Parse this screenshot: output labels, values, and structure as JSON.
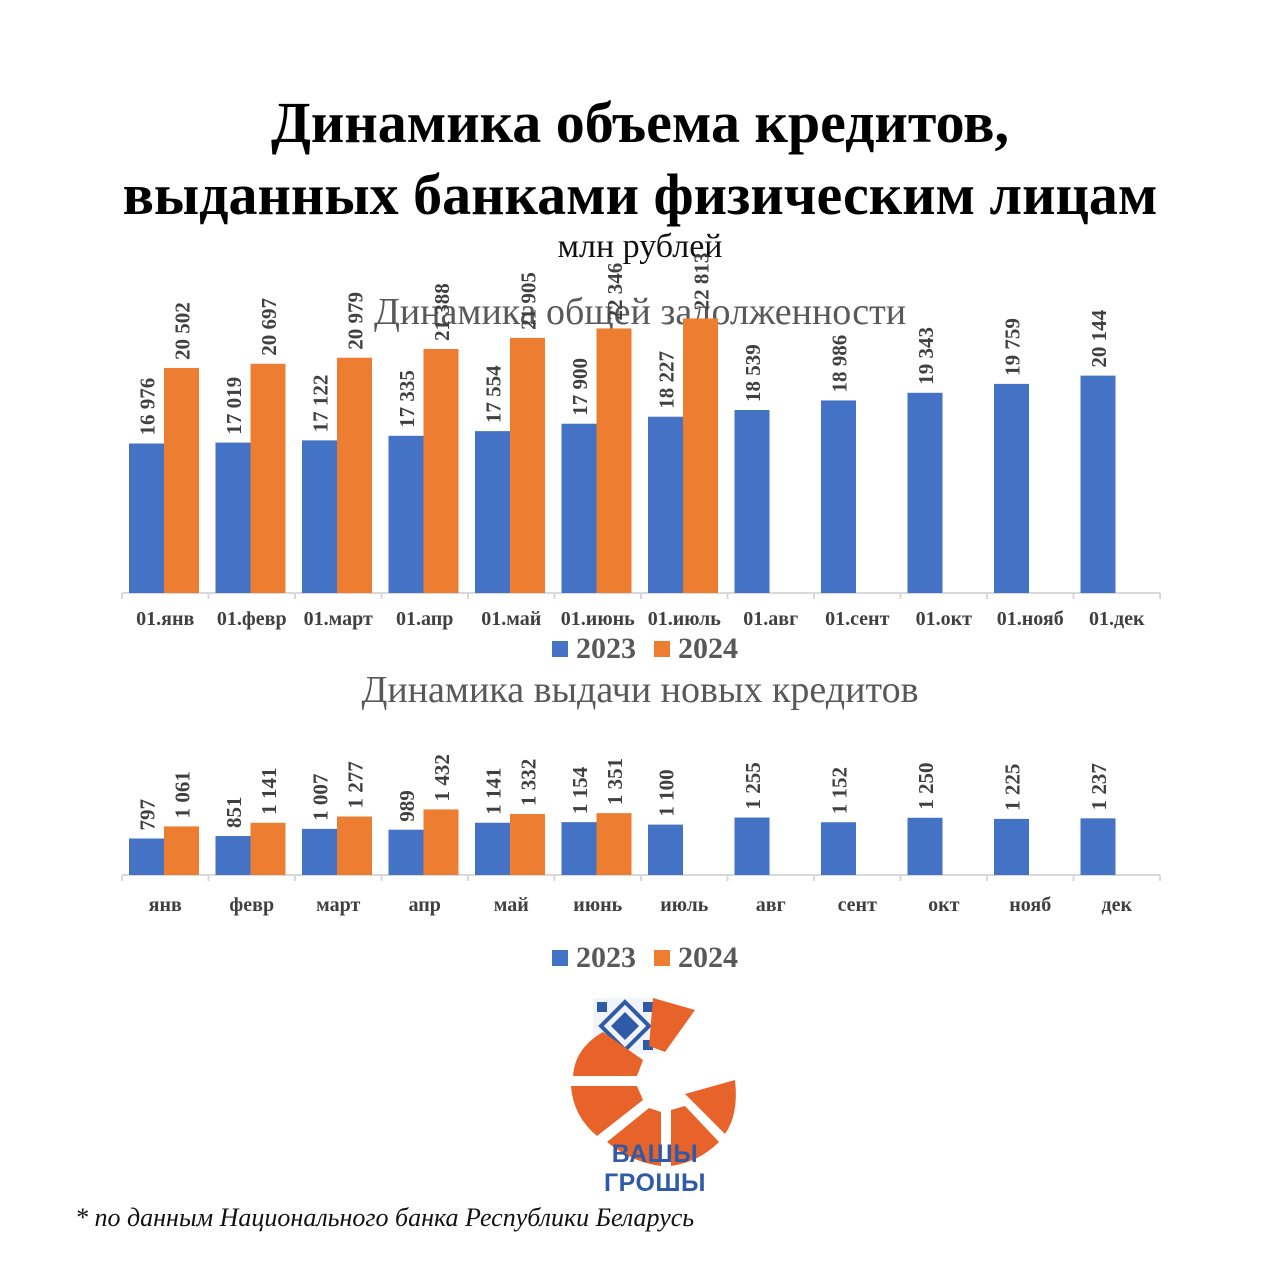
{
  "title_line1": "Динамика объема кредитов,",
  "title_line2": "выданных банками физическим лицам",
  "unit": "млн рублей",
  "colors": {
    "series2023": "#4472c4",
    "series2024": "#ed7d31",
    "axis": "#d9d9d9"
  },
  "chart_data": [
    {
      "type": "bar",
      "title": "Динамика общей задолженности",
      "categories": [
        "01.янв",
        "01.февр",
        "01.март",
        "01.апр",
        "01.май",
        "01.июнь",
        "01.июль",
        "01.авг",
        "01.сент",
        "01.окт",
        "01.нояб",
        "01.дек"
      ],
      "series": [
        {
          "name": "2023",
          "values": [
            16976,
            17019,
            17122,
            17335,
            17554,
            17900,
            18227,
            18539,
            18986,
            19343,
            19759,
            20144
          ],
          "labels": [
            "16 976",
            "17 019",
            "17 122",
            "17 335",
            "17 554",
            "17 900",
            "18 227",
            "18 539",
            "18 986",
            "19 343",
            "19 759",
            "20 144"
          ]
        },
        {
          "name": "2024",
          "values": [
            20502,
            20697,
            20979,
            21388,
            21905,
            22346,
            22813,
            null,
            null,
            null,
            null,
            null
          ],
          "labels": [
            "20 502",
            "20 697",
            "20 979",
            "21 388",
            "21 905",
            "22 346",
            "22 813",
            null,
            null,
            null,
            null,
            null
          ]
        }
      ],
      "ylim": [
        10000,
        24000
      ],
      "legend": "bottom"
    },
    {
      "type": "bar",
      "title": "Динамика выдачи новых кредитов",
      "categories": [
        "янв",
        "февр",
        "март",
        "апр",
        "май",
        "июнь",
        "июль",
        "авг",
        "сент",
        "окт",
        "нояб",
        "дек"
      ],
      "series": [
        {
          "name": "2023",
          "values": [
            797,
            851,
            1007,
            989,
            1141,
            1154,
            1100,
            1255,
            1152,
            1250,
            1225,
            1237
          ],
          "labels": [
            "797",
            "851",
            "1 007",
            "989",
            "1 141",
            "1 154",
            "1 100",
            "1 255",
            "1 152",
            "1 250",
            "1 225",
            "1 237"
          ]
        },
        {
          "name": "2024",
          "values": [
            1061,
            1141,
            1277,
            1432,
            1332,
            1351,
            null,
            null,
            null,
            null,
            null,
            null
          ],
          "labels": [
            "1 061",
            "1 141",
            "1 277",
            "1 432",
            "1 332",
            "1 351",
            null,
            null,
            null,
            null,
            null,
            null
          ]
        }
      ],
      "ylim": [
        0,
        5000
      ],
      "legend": "bottom"
    }
  ],
  "logo": {
    "text": "ВАШЫ ГРОШЫ",
    "color": "#e8632a"
  },
  "footnote": "* по данным Национального банка Республики Беларусь"
}
